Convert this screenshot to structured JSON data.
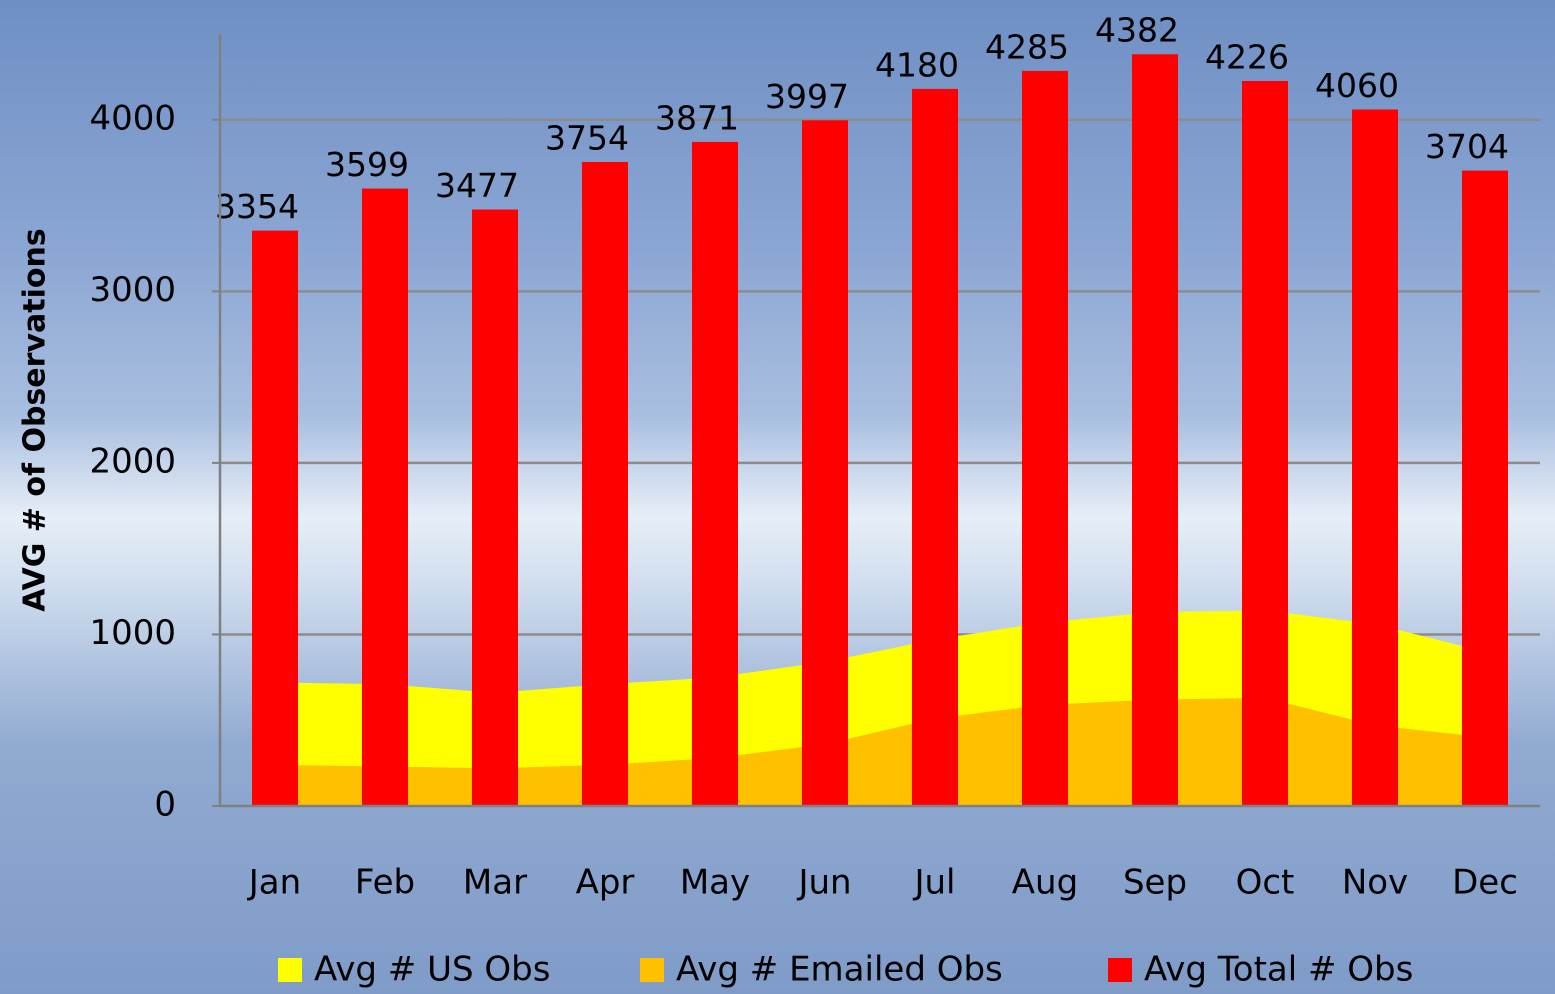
{
  "chart_data": {
    "type": "bar",
    "y_label": "AVG # of Observations",
    "categories": [
      "Jan",
      "Feb",
      "Mar",
      "Apr",
      "May",
      "Jun",
      "Jul",
      "Aug",
      "Sep",
      "Oct",
      "Nov",
      "Dec"
    ],
    "series": [
      {
        "name": "Avg # US Obs",
        "type": "area",
        "color": "#ffff00",
        "values": [
          720,
          710,
          660,
          710,
          750,
          840,
          970,
          1070,
          1130,
          1140,
          1060,
          900
        ]
      },
      {
        "name": "Avg # Emailed Obs",
        "type": "area",
        "color": "#ffc000",
        "values": [
          240,
          230,
          220,
          240,
          280,
          360,
          510,
          590,
          620,
          630,
          470,
          400
        ]
      },
      {
        "name": "Avg Total # Obs",
        "type": "bar",
        "color": "#ff0000",
        "values": [
          3354,
          3599,
          3477,
          3754,
          3871,
          3997,
          4180,
          4285,
          4382,
          4226,
          4060,
          3704
        ]
      }
    ],
    "ylim": [
      0,
      4500
    ],
    "yticks": [
      0,
      1000,
      2000,
      3000,
      4000
    ],
    "grid": true
  }
}
